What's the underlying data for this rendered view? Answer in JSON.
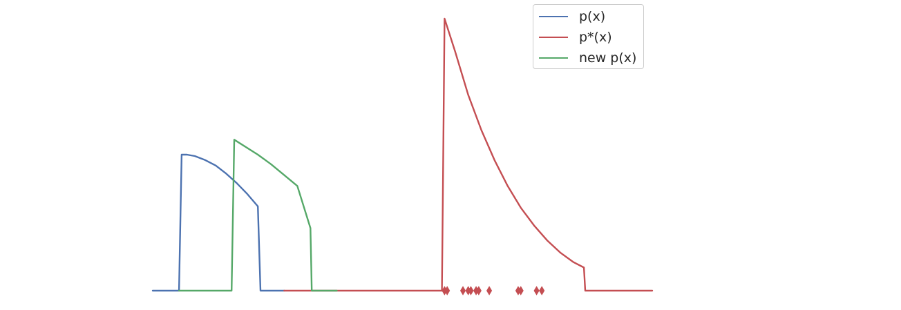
{
  "chart_data": {
    "type": "line",
    "title": "",
    "xlabel": "",
    "ylabel": "",
    "xlim": [
      -4.0,
      15.0
    ],
    "ylim": [
      0,
      1.0
    ],
    "grid": false,
    "axes_visible": false,
    "legend_position": "top-right",
    "series": [
      {
        "name": "p(x)",
        "color": "#4c72b0",
        "x": [
          -4.0,
          -3.0,
          -2.9,
          -2.7,
          -2.4,
          -2.0,
          -1.6,
          -1.2,
          -0.8,
          -0.4,
          0.0,
          0.1,
          1.0
        ],
        "y": [
          0.0,
          0.0,
          0.5,
          0.5,
          0.495,
          0.48,
          0.46,
          0.43,
          0.395,
          0.355,
          0.31,
          0.0,
          0.0
        ]
      },
      {
        "name": "p*(x)",
        "color": "#c44e52",
        "x": [
          1.0,
          7.0,
          7.1,
          7.5,
          8.0,
          8.5,
          9.0,
          9.5,
          10.0,
          10.5,
          11.0,
          11.5,
          12.0,
          12.4,
          12.45,
          15.0
        ],
        "y": [
          0.0,
          0.0,
          1.0,
          0.88,
          0.72,
          0.59,
          0.48,
          0.385,
          0.305,
          0.24,
          0.185,
          0.14,
          0.105,
          0.085,
          0.0,
          0.0
        ]
      },
      {
        "name": "new p(x)",
        "color": "#55a868",
        "x": [
          -3.0,
          -1.0,
          -0.9,
          0.0,
          0.5,
          1.0,
          1.5,
          2.0,
          2.05,
          3.0
        ],
        "y": [
          0.0,
          0.0,
          0.555,
          0.5,
          0.465,
          0.425,
          0.385,
          0.23,
          0.0,
          0.0
        ]
      }
    ],
    "samples": {
      "name": "samples",
      "color": "#c44e52",
      "marker": "thin_diamond",
      "x": [
        7.1,
        7.2,
        7.8,
        8.0,
        8.1,
        8.3,
        8.4,
        8.8,
        9.9,
        10.0,
        10.6,
        10.8
      ],
      "y": [
        0,
        0,
        0,
        0,
        0,
        0,
        0,
        0,
        0,
        0,
        0,
        0
      ]
    }
  }
}
